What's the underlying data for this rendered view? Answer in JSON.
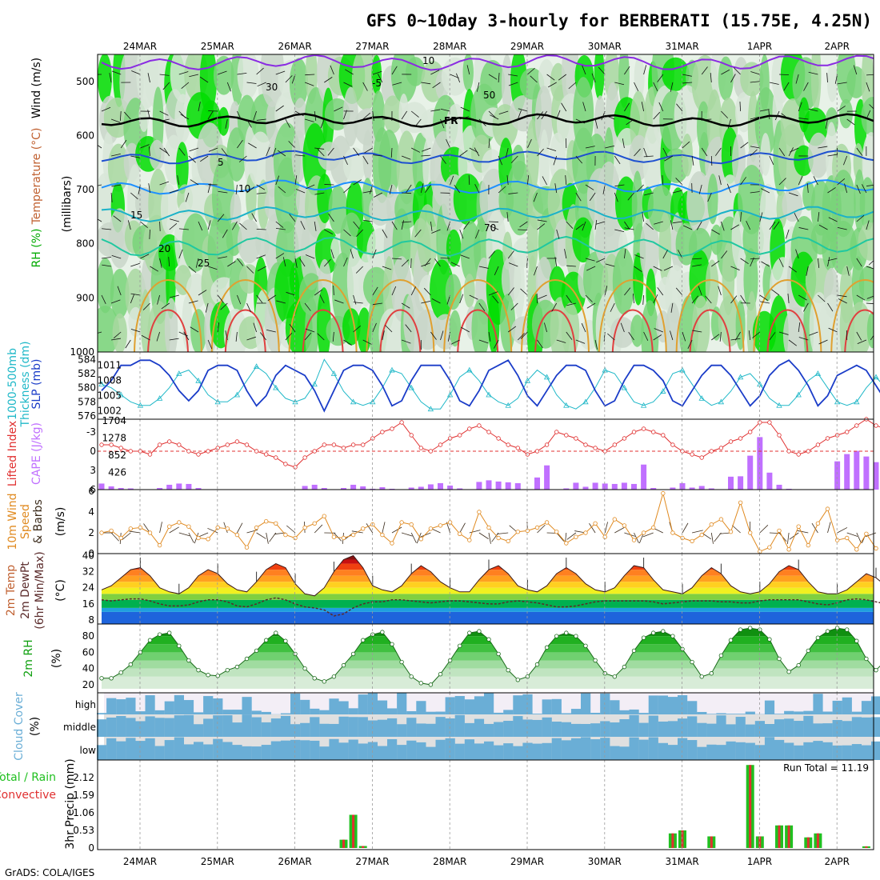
{
  "title": "GFS 0~10day 3-hourly for BERBERATI (15.75E, 4.25N)",
  "credit": "GrADS: COLA/IGES",
  "dates": [
    "24MAR",
    "25MAR",
    "26MAR",
    "27MAR",
    "28MAR",
    "29MAR",
    "30MAR",
    "31MAR",
    "1APR",
    "2APR"
  ],
  "colors": {
    "rh_low": "#c9d6c9",
    "rh_mid": "#78d478",
    "rh_high": "#00dd00",
    "t_minus5": "#8a2be2",
    "t_freeze": "#000000",
    "t_5": "#1e50d0",
    "t_10": "#1e90ff",
    "t_15": "#1ab2c8",
    "t_20": "#20c8a0",
    "t_25": "#e0a030",
    "t_30": "#e04040",
    "slp": "#1a3cc8",
    "thickness": "#20b8c8",
    "lifted": "#e03030",
    "cape": "#c070ff",
    "wind": "#e08a20",
    "dewpt": "#5a2a2a",
    "rh2m": "#10a010",
    "cloud": "#6aaed6",
    "precip_total": "#20c020",
    "precip_conv": "#e03030"
  },
  "panels": {
    "upper": {
      "ylabel_rh": "RH (%)",
      "ylabel_temp": "Temperature (°C)",
      "ylabel_wind": "Wind (m/s)",
      "ylabel_mb": "(millibars)",
      "yticks": [
        "500",
        "600",
        "700",
        "800",
        "900",
        "1000"
      ],
      "contour_labels": [
        "-5",
        "FR",
        "5",
        "10",
        "15",
        "20",
        "25",
        "10",
        "30",
        "50",
        "70"
      ]
    },
    "slp": {
      "ylabel_a": "1000-500mb",
      "ylabel_b": "Thickness (dm)",
      "ylabel_c": "SLP (mb)",
      "yticks_left": [
        "576",
        "578",
        "580",
        "582",
        "584"
      ],
      "yticks_right": [
        "1002",
        "1005",
        "1008",
        "1011"
      ]
    },
    "cape": {
      "ylabel_a": "Lifted Index",
      "ylabel_b": "CAPE (J/kg)",
      "yticks_left": [
        "-3",
        "0",
        "3",
        "6"
      ],
      "yticks_right": [
        "426",
        "852",
        "1278",
        "1704"
      ]
    },
    "wind": {
      "ylabel_a": "10m Wind",
      "ylabel_b": "Speed",
      "ylabel_c": "& Barbs",
      "ylabel_d": "(m/s)",
      "yticks": [
        "0",
        "2",
        "4",
        "6"
      ]
    },
    "temp": {
      "ylabel_a": "2m Temp",
      "ylabel_b": "2m DewPt",
      "ylabel_c": "(6hr Min/Max)",
      "ylabel_d": "(°C)",
      "yticks": [
        "8",
        "16",
        "24",
        "32",
        "40"
      ]
    },
    "rh": {
      "ylabel_a": "2m RH",
      "ylabel_b": "(%)",
      "yticks": [
        "20",
        "40",
        "60",
        "80"
      ]
    },
    "cloud": {
      "ylabel_a": "Cloud Cover",
      "ylabel_b": "(%)",
      "levels": [
        "high",
        "middle",
        "low"
      ]
    },
    "precip": {
      "ylabel_a": "Total / Rain",
      "ylabel_b": "Convective",
      "ylabel_c": "3hr Precip (mm)",
      "yticks": [
        "0",
        "0.53",
        "1.06",
        "1.59",
        "2.12"
      ],
      "run_total": "Run Total = 11.19"
    }
  },
  "chart_data": [
    {
      "type": "line",
      "name": "SLP",
      "title": "",
      "ylabel": "SLP (mb)",
      "ylim": [
        1001,
        1013
      ],
      "x": "3-hourly from 23MAR 12Z",
      "values": [
        1006,
        1008,
        1011,
        1011,
        1012,
        1012,
        1011,
        1009,
        1006,
        1004,
        1006,
        1010,
        1011,
        1011,
        1010,
        1006,
        1003,
        1005,
        1009,
        1011,
        1010,
        1009,
        1006,
        1002,
        1006,
        1010,
        1011,
        1011,
        1010,
        1007,
        1003,
        1004,
        1008,
        1011,
        1011,
        1011,
        1008,
        1004,
        1003,
        1006,
        1010,
        1011,
        1012,
        1009,
        1005,
        1003,
        1006,
        1009,
        1011,
        1011,
        1010,
        1006,
        1003,
        1004,
        1008,
        1011,
        1011,
        1010,
        1008,
        1004,
        1003,
        1006,
        1009,
        1011,
        1011,
        1009,
        1006,
        1003,
        1005,
        1009,
        1011,
        1012,
        1010,
        1007,
        1003,
        1005,
        1009,
        1010,
        1011,
        1010,
        1007,
        1004,
        1006,
        1008
      ]
    },
    {
      "type": "line",
      "name": "1000-500mb Thickness",
      "ylabel": "Thickness (dm)",
      "ylim": [
        576,
        584.6
      ],
      "values": [
        580.5,
        580,
        579,
        578,
        577.5,
        577.5,
        578.5,
        580,
        582,
        582.5,
        581,
        579,
        578,
        578,
        579,
        581,
        583,
        582,
        580,
        578.5,
        578,
        578.5,
        580.5,
        584,
        582,
        579.5,
        578,
        577.5,
        578,
        580,
        582.5,
        582,
        580,
        578,
        577,
        577,
        579,
        581.5,
        582.5,
        581,
        579,
        578,
        577.5,
        578.5,
        581,
        582.5,
        581.5,
        579,
        577.5,
        577,
        578,
        580,
        582.5,
        582,
        580,
        578,
        577.5,
        578,
        579.5,
        582,
        582.5,
        580.5,
        578.5,
        577.5,
        578,
        579.5,
        581.5,
        582,
        580.5,
        578.5,
        577.5,
        577.5,
        579,
        581,
        582,
        580,
        578,
        577.5,
        578,
        580,
        581.5,
        580,
        579,
        578.5
      ]
    },
    {
      "type": "line",
      "name": "Lifted Index",
      "ylabel": "Lifted Index",
      "ylim": [
        6,
        -5
      ],
      "values": [
        -1,
        -1,
        -0.5,
        0,
        0,
        0.5,
        -1,
        -1.5,
        -1,
        0,
        0.5,
        0,
        -0.5,
        -1,
        -1.5,
        -1,
        0,
        0.5,
        1,
        2,
        2.5,
        1,
        0,
        -1,
        -1,
        -0.5,
        -1,
        -1,
        -2,
        -3,
        -3.5,
        -4.5,
        -2.5,
        -0.5,
        0,
        -1,
        -2,
        -2.5,
        -3.5,
        -4,
        -3,
        -2,
        -1,
        -0.5,
        0.5,
        0,
        -1,
        -3,
        -2.5,
        -2,
        -1,
        -0.5,
        0,
        -1,
        -2,
        -3,
        -3.5,
        -3,
        -2.5,
        -1,
        0,
        0.5,
        1,
        0,
        -0.5,
        -1.5,
        -2,
        -3,
        -4.5,
        -4.5,
        -2.5,
        0,
        0.5,
        0,
        -1,
        -2,
        -2.5,
        -3,
        -4,
        -5,
        -4,
        -3.5,
        -3,
        -2,
        -1,
        -0.5
      ]
    },
    {
      "type": "bar",
      "name": "CAPE",
      "ylabel": "CAPE (J/kg)",
      "ylim": [
        0,
        1704
      ],
      "values": [
        150,
        80,
        40,
        30,
        0,
        0,
        40,
        120,
        150,
        140,
        40,
        0,
        0,
        0,
        0,
        0,
        0,
        0,
        0,
        0,
        0,
        90,
        120,
        40,
        10,
        40,
        120,
        80,
        20,
        60,
        20,
        10,
        50,
        70,
        130,
        160,
        100,
        30,
        0,
        190,
        230,
        200,
        180,
        160,
        0,
        300,
        600,
        0,
        30,
        170,
        70,
        170,
        150,
        140,
        170,
        140,
        620,
        40,
        0,
        50,
        160,
        50,
        90,
        30,
        0,
        320,
        330,
        840,
        1300,
        420,
        120,
        20,
        0,
        0,
        0,
        0,
        700,
        880,
        960,
        820,
        680,
        560,
        700,
        420,
        210
      ]
    },
    {
      "type": "line",
      "name": "10m Wind Speed",
      "ylabel": "(m/s)",
      "ylim": [
        0,
        6
      ],
      "values": [
        2,
        2.2,
        1.5,
        2.4,
        2.5,
        2,
        0.8,
        2.6,
        3,
        2.6,
        1.5,
        1.4,
        2.5,
        2.4,
        1.8,
        0.6,
        2.5,
        3.1,
        2.9,
        1.8,
        1.5,
        2.5,
        2.9,
        3.6,
        1.6,
        1.5,
        1.8,
        2.4,
        2.8,
        1.8,
        1,
        3,
        2.8,
        1.4,
        2.4,
        2.7,
        3,
        1.9,
        1.3,
        4,
        2.5,
        1.5,
        1.2,
        2.1,
        2.2,
        2.5,
        3,
        2.1,
        1,
        1.6,
        2,
        2.9,
        1.6,
        3.3,
        2.7,
        1.3,
        2,
        2.5,
        5.8,
        2,
        1.5,
        1.2,
        1.8,
        2.8,
        3.3,
        2.1,
        4.9,
        2,
        0.2,
        0.6,
        2.2,
        0.4,
        2.6,
        0.8,
        2.9,
        4.3,
        1.3,
        1.5,
        0.4,
        1.9,
        0.5
      ]
    },
    {
      "type": "area",
      "name": "2m Temp",
      "ylabel": "(°C)",
      "ylim": [
        6,
        41
      ],
      "values": [
        23,
        25,
        29,
        33,
        34,
        30,
        24,
        22,
        21,
        24,
        30,
        33,
        31,
        26,
        23,
        22,
        27,
        33,
        36,
        34,
        26,
        21,
        20,
        24,
        32,
        38,
        40,
        34,
        25,
        23,
        22,
        25,
        31,
        35,
        32,
        27,
        24,
        22,
        22,
        28,
        33,
        35,
        31,
        25,
        23,
        22,
        25,
        31,
        34,
        31,
        26,
        23,
        22,
        24,
        30,
        35,
        34,
        28,
        23,
        22,
        21,
        24,
        30,
        34,
        31,
        25,
        22,
        21,
        22,
        26,
        32,
        35,
        33,
        27,
        22,
        21,
        21,
        23,
        27,
        31,
        29,
        25,
        22,
        21
      ]
    },
    {
      "type": "line",
      "name": "2m DewPt",
      "ylabel": "(°C)",
      "values": [
        18,
        17.5,
        18,
        18.5,
        18.5,
        17.5,
        16,
        15,
        15,
        15.5,
        17,
        18,
        18,
        17,
        15,
        14.5,
        16,
        18,
        19,
        18,
        16,
        14.5,
        14,
        13,
        10,
        11,
        14,
        16,
        17,
        17,
        18,
        18,
        17.5,
        17,
        16.5,
        17,
        17.5,
        17.5,
        17,
        16.5,
        16,
        16,
        17,
        17.5,
        17,
        16.5,
        15.5,
        14.5,
        14.5,
        15,
        16,
        17,
        17.5,
        17.5,
        17.5,
        17.5,
        17.5,
        17,
        16,
        16.5,
        17,
        17.5,
        17.5,
        17.5,
        17,
        17,
        16.5,
        16.5,
        17.5,
        18,
        18,
        18,
        18,
        17,
        16,
        15.5,
        16.5,
        18,
        18.5,
        18,
        17,
        16,
        16,
        16.5
      ]
    },
    {
      "type": "area",
      "name": "2m RH",
      "ylabel": "(%)",
      "ylim": [
        10,
        95
      ],
      "values": [
        28,
        28,
        35,
        45,
        60,
        75,
        82,
        84,
        68,
        50,
        38,
        32,
        31,
        38,
        42,
        52,
        62,
        75,
        84,
        74,
        58,
        40,
        28,
        24,
        30,
        44,
        58,
        75,
        82,
        85,
        70,
        48,
        30,
        22,
        20,
        33,
        50,
        68,
        84,
        86,
        76,
        58,
        38,
        26,
        30,
        45,
        66,
        80,
        84,
        80,
        68,
        50,
        34,
        30,
        42,
        62,
        78,
        84,
        86,
        80,
        64,
        48,
        30,
        34,
        56,
        75,
        88,
        90,
        88,
        76,
        52,
        36,
        44,
        62,
        78,
        86,
        90,
        88,
        74,
        52,
        38,
        50,
        70,
        82
      ]
    },
    {
      "type": "bar",
      "name": "Cloud Cover",
      "levels": [
        "high",
        "middle",
        "low"
      ]
    },
    {
      "type": "bar",
      "name": "3hr Precip",
      "ylabel": "3hr Precip (mm)",
      "ylim": [
        0,
        2.65
      ],
      "series": [
        {
          "name": "Total / Rain",
          "values": [
            0,
            0,
            0,
            0,
            0,
            0,
            0,
            0,
            0,
            0,
            0,
            0,
            0,
            0,
            0,
            0,
            0,
            0,
            0,
            0,
            0,
            0,
            0,
            0,
            0,
            0.25,
            1,
            0.06,
            0,
            0,
            0,
            0,
            0,
            0,
            0,
            0,
            0,
            0,
            0,
            0,
            0,
            0,
            0,
            0,
            0,
            0,
            0,
            0,
            0,
            0,
            0,
            0,
            0,
            0,
            0,
            0,
            0,
            0,
            0,
            0.44,
            0.53,
            0,
            0,
            0.35,
            0,
            0,
            0,
            2.5,
            0.35,
            0,
            0.68,
            0.68,
            0,
            0.32,
            0.44,
            0,
            0,
            0,
            0,
            0.05,
            0,
            0,
            0,
            1.1,
            1.1,
            0,
            1.0,
            0.12,
            0,
            0,
            0.17,
            0
          ]
        }
      ]
    }
  ]
}
